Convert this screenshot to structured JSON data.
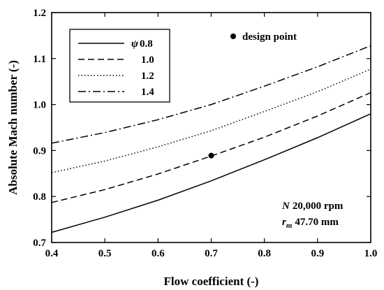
{
  "chart_data": {
    "type": "line",
    "xlabel": "Flow coefficient (-)",
    "ylabel": "Absolute Mach number (-)",
    "xlim": [
      0.4,
      1.0
    ],
    "ylim": [
      0.7,
      1.2
    ],
    "xticks": [
      "0.4",
      "0.5",
      "0.6",
      "0.7",
      "0.8",
      "0.9",
      "1.0"
    ],
    "yticks": [
      "0.7",
      "0.8",
      "0.9",
      "1.0",
      "1.1",
      "1.2"
    ],
    "grid": false,
    "legend_position": "top-left",
    "legend_symbol": "ψ",
    "series": [
      {
        "name": "0.8",
        "dash": "solid",
        "x": [
          0.4,
          0.5,
          0.6,
          0.7,
          0.8,
          0.9,
          1.0
        ],
        "y": [
          0.722,
          0.755,
          0.792,
          0.834,
          0.88,
          0.928,
          0.98
        ]
      },
      {
        "name": "1.0",
        "dash": "dashed",
        "x": [
          0.4,
          0.5,
          0.6,
          0.7,
          0.8,
          0.9,
          1.0
        ],
        "y": [
          0.787,
          0.815,
          0.849,
          0.888,
          0.929,
          0.975,
          1.026
        ]
      },
      {
        "name": "1.2",
        "dash": "dotted",
        "x": [
          0.4,
          0.5,
          0.6,
          0.7,
          0.8,
          0.9,
          1.0
        ],
        "y": [
          0.852,
          0.877,
          0.908,
          0.943,
          0.985,
          1.028,
          1.077
        ]
      },
      {
        "name": "1.4",
        "dash": "dashdot",
        "x": [
          0.4,
          0.5,
          0.6,
          0.7,
          0.8,
          0.9,
          1.0
        ],
        "y": [
          0.916,
          0.939,
          0.967,
          1.0,
          1.04,
          1.082,
          1.128
        ]
      }
    ],
    "design_point": {
      "label": "design point",
      "x": 0.7,
      "y": 0.889
    },
    "annotations": [
      {
        "prefix": "N",
        "text": "20,000 rpm"
      },
      {
        "prefix": "r",
        "subscript": "m",
        "text": "47.70 mm"
      }
    ]
  }
}
